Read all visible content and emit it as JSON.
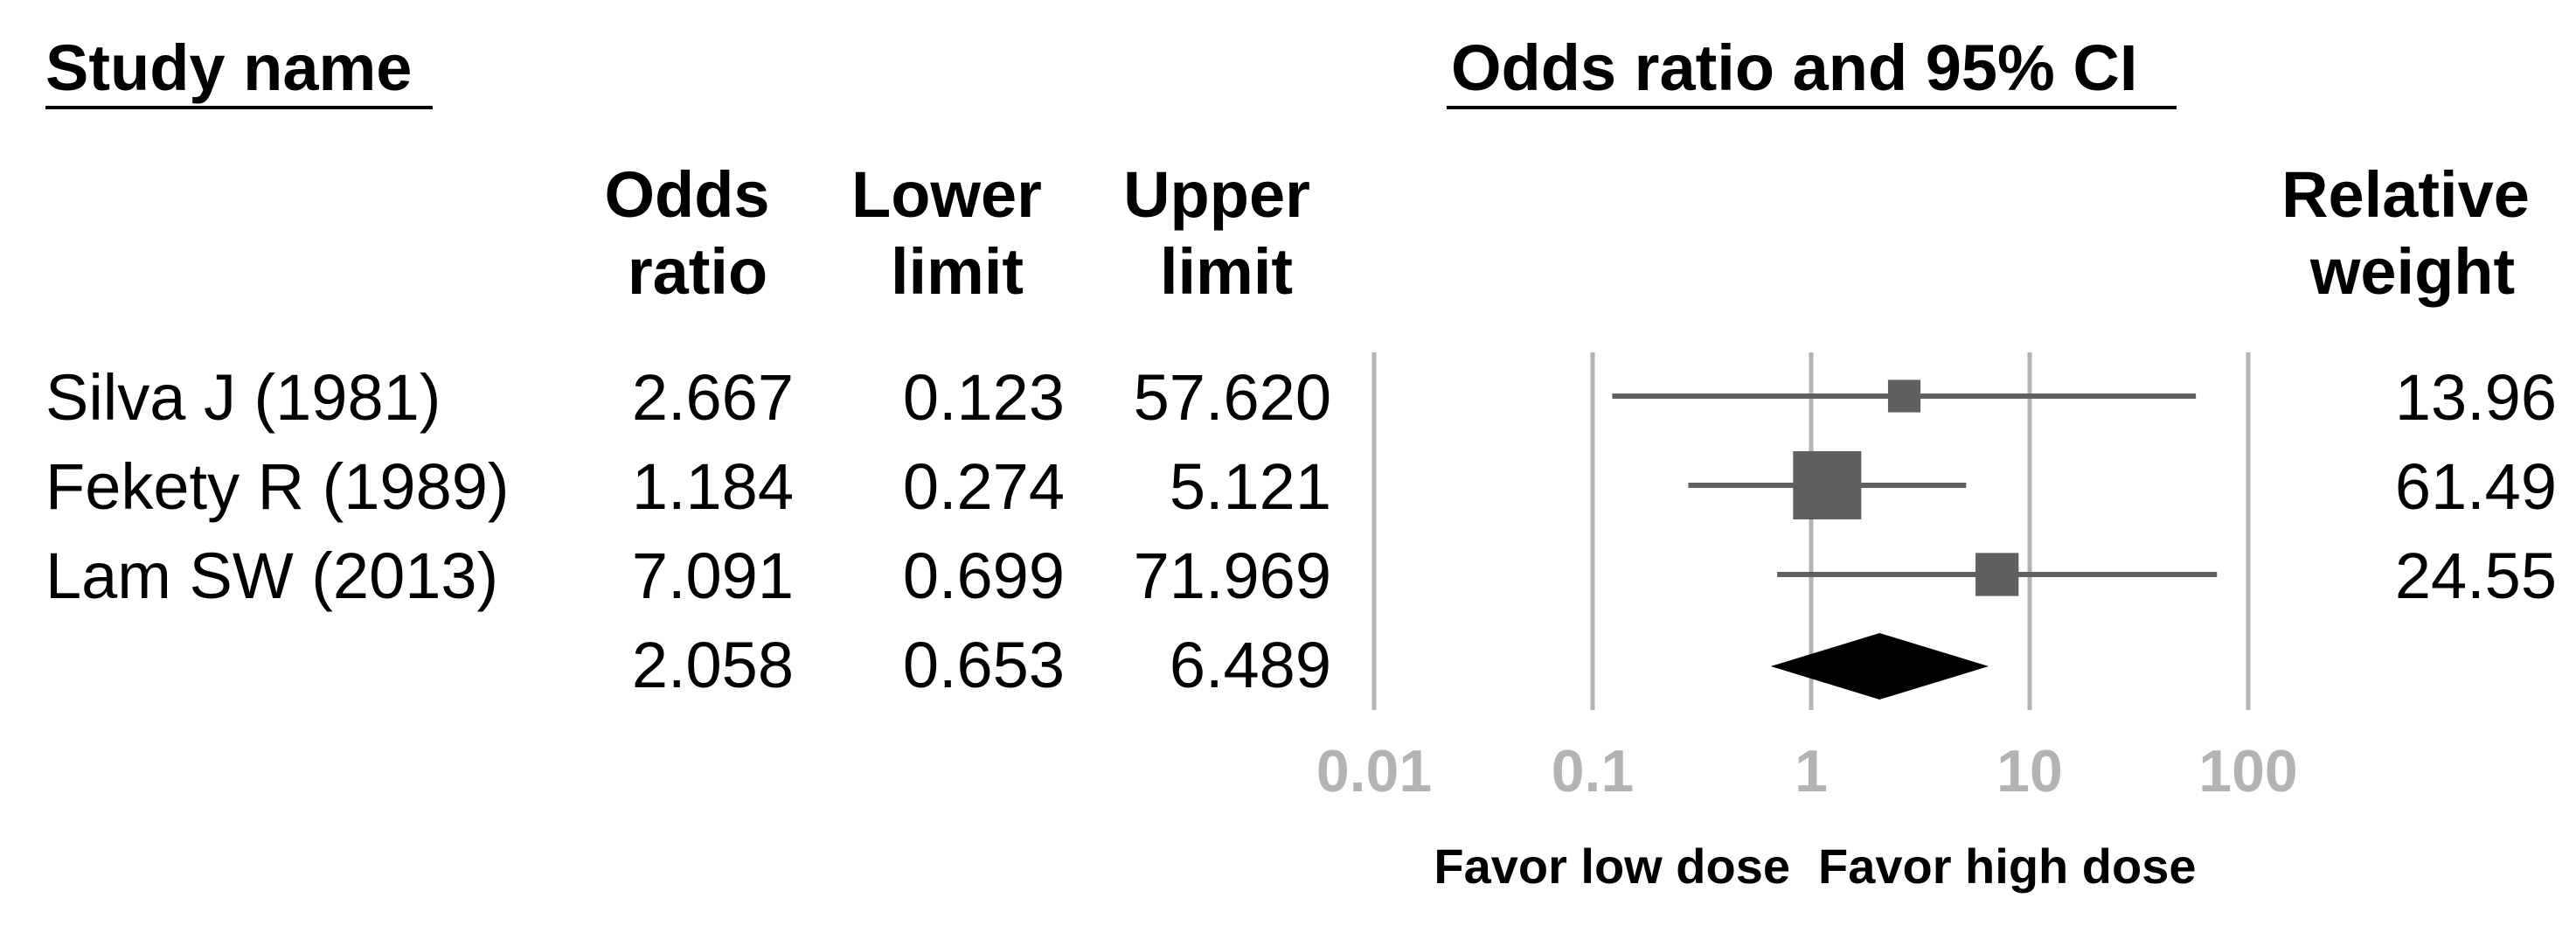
{
  "chart_data": {
    "type": "forest",
    "headers": {
      "study_name": "Study name",
      "ci_title": "Odds ratio and 95% CI",
      "odds_ratio": [
        "Odds",
        "ratio"
      ],
      "lower_limit": [
        "Lower",
        "limit"
      ],
      "upper_limit": [
        "Upper",
        "limit"
      ],
      "relative_weight": [
        "Relative",
        "weight"
      ]
    },
    "studies": [
      {
        "name": "Silva J (1981)",
        "odds_ratio": "2.667",
        "lower": "0.123",
        "upper": "57.620",
        "weight": "13.96",
        "or": 2.667,
        "lo": 0.123,
        "hi": 57.62,
        "w": 13.96
      },
      {
        "name": "Fekety R (1989)",
        "odds_ratio": "1.184",
        "lower": "0.274",
        "upper": "5.121",
        "weight": "61.49",
        "or": 1.184,
        "lo": 0.274,
        "hi": 5.121,
        "w": 61.49
      },
      {
        "name": "Lam SW (2013)",
        "odds_ratio": "7.091",
        "lower": "0.699",
        "upper": "71.969",
        "weight": "24.55",
        "or": 7.091,
        "lo": 0.699,
        "hi": 71.969,
        "w": 24.55
      }
    ],
    "summary": {
      "odds_ratio": "2.058",
      "lower": "0.653",
      "upper": "6.489",
      "or": 2.058,
      "lo": 0.653,
      "hi": 6.489
    },
    "x_axis": {
      "scale": "log",
      "ticks": [
        0.01,
        0.1,
        1,
        10,
        100
      ],
      "tick_labels": [
        "0.01",
        "0.1",
        "1",
        "10",
        "100"
      ],
      "range": [
        0.01,
        100
      ]
    },
    "favor_left": "Favor low dose",
    "favor_right": "Favor high dose",
    "colors": {
      "study_marker": "#606060",
      "ci_line": "#606060",
      "summary": "#000000",
      "gridline": "#b3b3b3",
      "tick_label": "#b3b3b3"
    }
  }
}
